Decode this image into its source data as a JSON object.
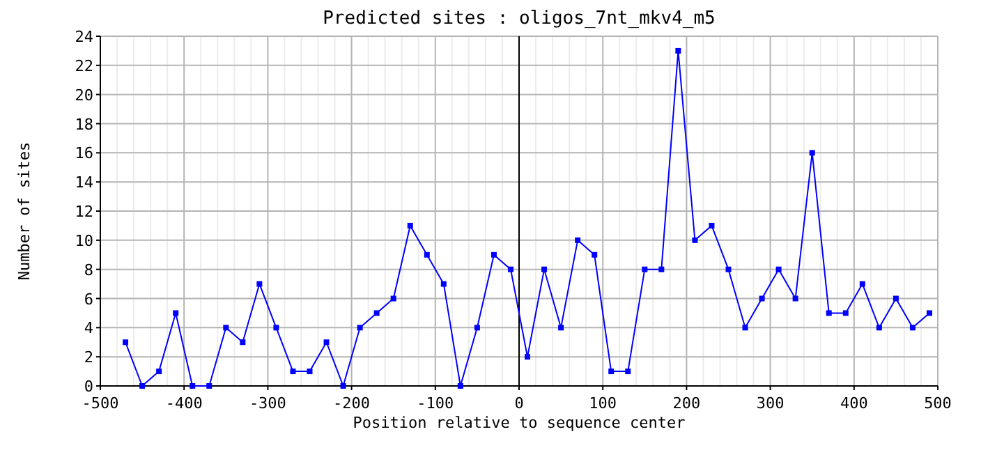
{
  "chart_data": {
    "type": "line",
    "title": "Predicted sites : oligos_7nt_mkv4_m5",
    "xlabel": "Position relative to sequence center",
    "ylabel": "Number of sites",
    "x": [
      -470,
      -450,
      -430,
      -410,
      -390,
      -370,
      -350,
      -330,
      -310,
      -290,
      -270,
      -250,
      -230,
      -210,
      -190,
      -170,
      -150,
      -130,
      -110,
      -90,
      -70,
      -50,
      -30,
      -10,
      10,
      30,
      50,
      70,
      90,
      110,
      130,
      150,
      170,
      190,
      210,
      230,
      250,
      270,
      290,
      310,
      330,
      350,
      370,
      390,
      410,
      430,
      450,
      470,
      490
    ],
    "series": [
      {
        "color": "#0000ff",
        "values": [
          3,
          0,
          1,
          5,
          0,
          0,
          4,
          3,
          7,
          4,
          1,
          1,
          3,
          0,
          4,
          5,
          6,
          11,
          9,
          7,
          0,
          4,
          9,
          8,
          2,
          8,
          4,
          10,
          9,
          1,
          1,
          8,
          8,
          23,
          10,
          11,
          8,
          4,
          6,
          8,
          6,
          16,
          5,
          5,
          7,
          4,
          6,
          4,
          5
        ]
      }
    ],
    "xlim": [
      -500,
      500
    ],
    "xticks": [
      -500,
      -400,
      -300,
      -200,
      -100,
      0,
      100,
      200,
      300,
      400,
      500
    ],
    "ylim": [
      0,
      24
    ],
    "yticks": [
      0,
      2,
      4,
      6,
      8,
      10,
      12,
      14,
      16,
      18,
      20,
      22,
      24
    ],
    "ref_lines": [
      {
        "axis": "x",
        "value": 0,
        "color": "#000000"
      }
    ],
    "grid": true,
    "marker": "square",
    "line_style": "solid"
  }
}
